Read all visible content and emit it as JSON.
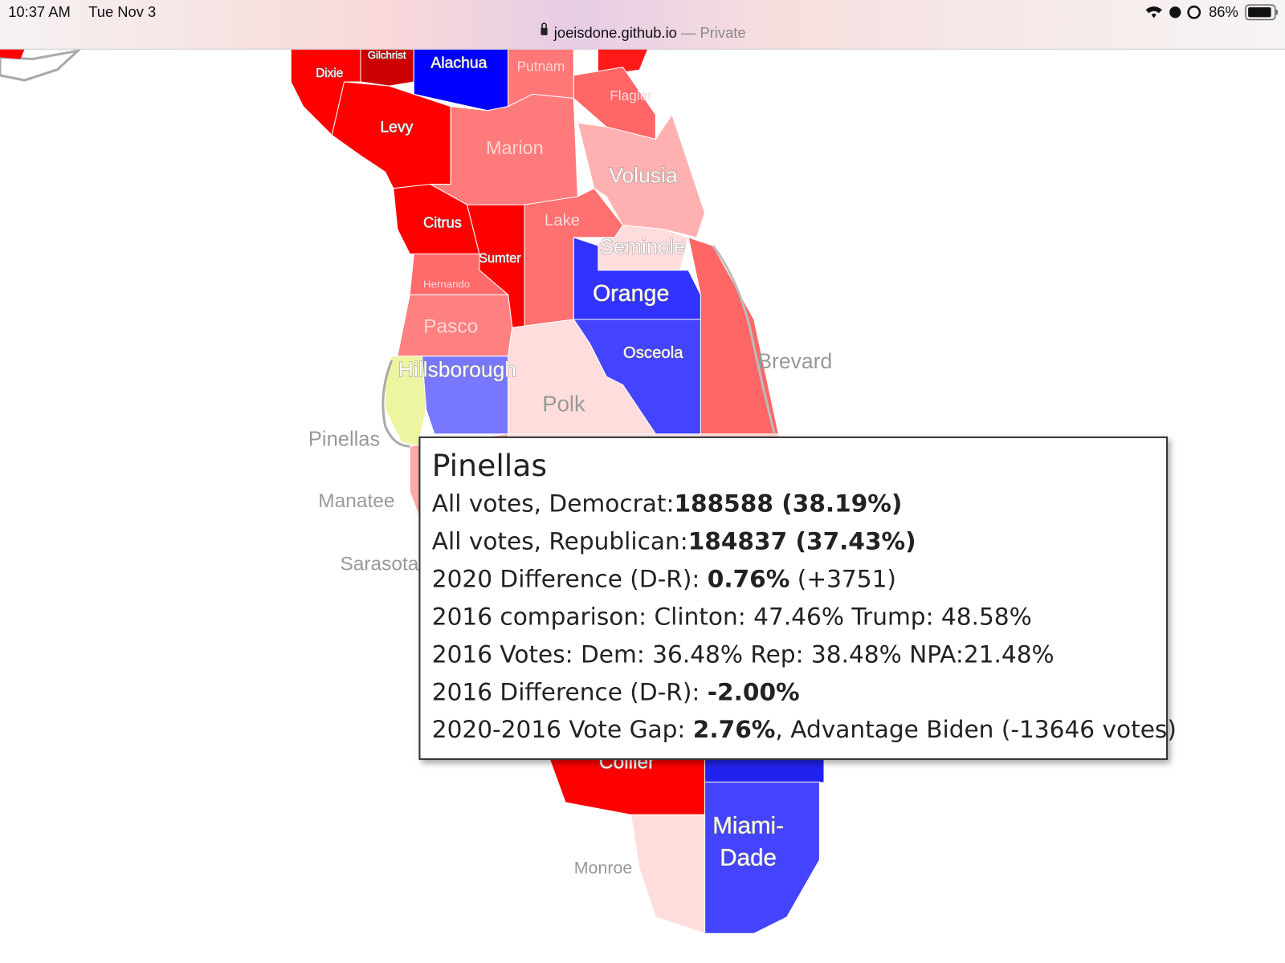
{
  "status_bar": {
    "time": "10:37 AM",
    "date": "Tue Nov 3",
    "battery": "86%"
  },
  "address_bar": {
    "domain": "joeisdone.github.io",
    "mode": "— Private"
  },
  "map": {
    "counties": [
      {
        "name": "Gilchrist",
        "color": "#cc0000"
      },
      {
        "name": "Dixie",
        "color": "#ff0000"
      },
      {
        "name": "Alachua",
        "color": "#0000ff"
      },
      {
        "name": "Putnam",
        "color": "#ff7777"
      },
      {
        "name": "Flagler",
        "color": "#ff6666"
      },
      {
        "name": "Levy",
        "color": "#ff0000"
      },
      {
        "name": "Marion",
        "color": "#ff7a7a"
      },
      {
        "name": "Volusia",
        "color": "#ffb0b0"
      },
      {
        "name": "Citrus",
        "color": "#ff0000"
      },
      {
        "name": "Lake",
        "color": "#ff7070"
      },
      {
        "name": "Sumter",
        "color": "#ff0000"
      },
      {
        "name": "Seminole",
        "color": "#ffdddd"
      },
      {
        "name": "Hernando",
        "color": "#ff6a6a"
      },
      {
        "name": "Orange",
        "color": "#3333ff"
      },
      {
        "name": "Pasco",
        "color": "#ff8080"
      },
      {
        "name": "Osceola",
        "color": "#4444ff"
      },
      {
        "name": "Brevard",
        "color": "#ff6666"
      },
      {
        "name": "Hillsborough",
        "color": "#7777ff"
      },
      {
        "name": "Pinellas",
        "color": "#eef5a0"
      },
      {
        "name": "Polk",
        "color": "#ffdddd"
      },
      {
        "name": "Manatee",
        "color": "#ffaaaa"
      },
      {
        "name": "Sarasota",
        "color": "#ffc0c0"
      },
      {
        "name": "Collier",
        "color": "#ff0000"
      },
      {
        "name": "Miami-Dade",
        "color": "#4444ff"
      },
      {
        "name": "Monroe",
        "color": "#ffdddd"
      }
    ]
  },
  "tooltip": {
    "title": "Pinellas",
    "lines": [
      [
        {
          "text": "All votes, Democrat:",
          "bold": false
        },
        {
          "text": "188588 (38.19%)",
          "bold": true
        }
      ],
      [
        {
          "text": "All votes, Republican:",
          "bold": false
        },
        {
          "text": "184837 (37.43%)",
          "bold": true
        }
      ],
      [
        {
          "text": "2020 Difference (D-R): ",
          "bold": false
        },
        {
          "text": "0.76%",
          "bold": true
        },
        {
          "text": " (+3751)",
          "bold": false
        }
      ],
      [
        {
          "text": "2016 comparison: Clinton: 47.46% Trump: 48.58%",
          "bold": false
        }
      ],
      [
        {
          "text": "2016 Votes: Dem: 36.48% Rep: 38.48% NPA:21.48%",
          "bold": false
        }
      ],
      [
        {
          "text": "2016 Difference (D-R): ",
          "bold": false
        },
        {
          "text": "-2.00%",
          "bold": true
        }
      ],
      [
        {
          "text": "2020-2016 Vote Gap: ",
          "bold": false
        },
        {
          "text": "2.76%",
          "bold": true
        },
        {
          "text": ", Advantage Biden (-13646 votes)",
          "bold": false
        }
      ]
    ]
  }
}
